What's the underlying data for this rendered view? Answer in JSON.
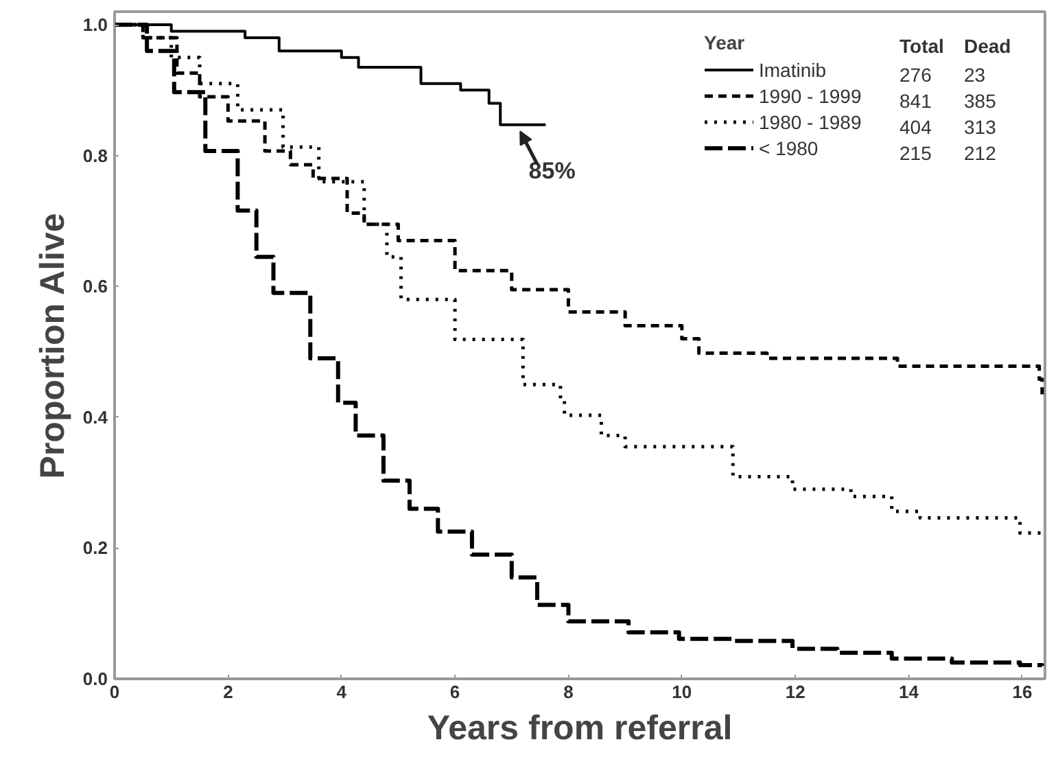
{
  "chart_data": {
    "type": "step",
    "xlabel": "Years from referral",
    "ylabel": "Proportion Alive",
    "legend_title": "Year",
    "legend": "top right",
    "grid": false,
    "marker": "none",
    "xlim": [
      0,
      16.4
    ],
    "ylim": [
      0,
      1.02
    ],
    "xticks": [
      0,
      2,
      4,
      6,
      8,
      10,
      12,
      14,
      16
    ],
    "yticks": [
      {
        "value": 0,
        "label": "0.0"
      },
      {
        "value": 0.2,
        "label": "0.2"
      },
      {
        "value": 0.4,
        "label": "0.4"
      },
      {
        "value": 0.6,
        "label": "0.6"
      },
      {
        "value": 0.8,
        "label": "0.8"
      },
      {
        "value": 1,
        "label": "1.0"
      }
    ],
    "annotations": [
      "Total",
      "Dead",
      "276",
      "23",
      "841",
      "385",
      "404",
      "313",
      "215",
      "212",
      {
        "text": "85%",
        "x": 7.3,
        "y": 0.847
      }
    ],
    "series": [
      {
        "name": "Imatinib",
        "color": "#000000",
        "line_style": "solid",
        "x": [
          0,
          0.6,
          1,
          2.3,
          2.9,
          4,
          4.3,
          5.4,
          6.1,
          6.6,
          6.8,
          7.6
        ],
        "values": [
          1,
          1,
          0.99,
          0.98,
          0.96,
          0.95,
          0.935,
          0.91,
          0.9,
          0.88,
          0.847,
          0.847
        ]
      },
      {
        "name": "1990 - 1999",
        "color": "#000000",
        "line_style": "dashed",
        "x": [
          0,
          0.5,
          1.1,
          1.5,
          2,
          2.65,
          3.1,
          3.5,
          4.1,
          4.4,
          5,
          6,
          7,
          8,
          9,
          10,
          10.3,
          11.5,
          13.8,
          16.3,
          16.35
        ],
        "values": [
          1,
          0.98,
          0.926,
          0.89,
          0.853,
          0.807,
          0.786,
          0.765,
          0.712,
          0.695,
          0.67,
          0.624,
          0.595,
          0.561,
          0.54,
          0.52,
          0.498,
          0.49,
          0.478,
          0.458,
          0.435
        ]
      },
      {
        "name": "1980 - 1989",
        "color": "#000000",
        "line_style": "dotted",
        "x": [
          0,
          0.5,
          1,
          1.5,
          2.17,
          2.97,
          3.6,
          4.4,
          4.8,
          5.05,
          6,
          7.2,
          7.86,
          7.93,
          8.58,
          9,
          10.9,
          11.95,
          12.98,
          13.7,
          14.2,
          15.96,
          16.35
        ],
        "values": [
          1,
          0.98,
          0.95,
          0.91,
          0.87,
          0.813,
          0.76,
          0.695,
          0.645,
          0.58,
          0.519,
          0.45,
          0.429,
          0.403,
          0.372,
          0.355,
          0.309,
          0.29,
          0.279,
          0.256,
          0.246,
          0.223,
          0.216
        ]
      },
      {
        "name": "< 1980",
        "color": "#000000",
        "line_style": "longdash",
        "x": [
          0,
          0.57,
          1.05,
          1.6,
          2.17,
          2.5,
          2.8,
          3.45,
          3.94,
          4.25,
          4.74,
          5.2,
          5.7,
          6.3,
          7,
          7.45,
          8,
          9.06,
          9.95,
          10.9,
          11.95,
          12.74,
          13.7,
          14.76,
          15.96,
          16.35
        ],
        "values": [
          1,
          0.96,
          0.897,
          0.807,
          0.716,
          0.645,
          0.59,
          0.49,
          0.422,
          0.372,
          0.303,
          0.26,
          0.225,
          0.19,
          0.155,
          0.113,
          0.088,
          0.071,
          0.061,
          0.058,
          0.046,
          0.04,
          0.031,
          0.025,
          0.021,
          0.02
        ]
      }
    ]
  }
}
